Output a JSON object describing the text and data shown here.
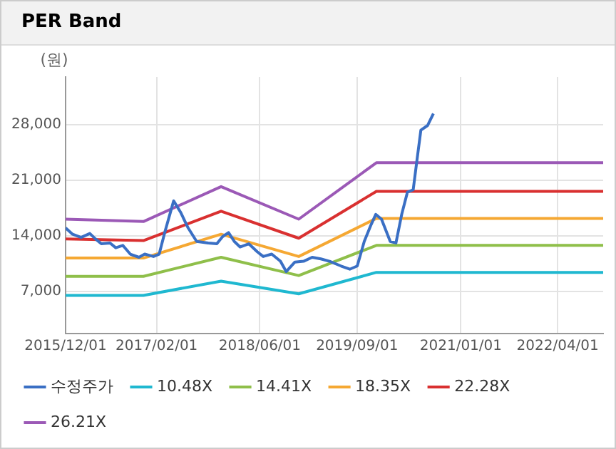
{
  "chart_data": {
    "type": "line",
    "title": "PER Band",
    "ylabel": "(원)",
    "x": [
      "2015-12-01",
      "2016-12-01",
      "2017-12-01",
      "2018-12-01",
      "2019-12-01",
      "2022-11-01"
    ],
    "series": [
      {
        "name": "수정주가",
        "color": "#3a6fc4",
        "x": [
          "2015-12-01",
          "2016-01-03",
          "2016-02-12",
          "2016-03-24",
          "2016-04-20",
          "2016-05-17",
          "2016-06-27",
          "2016-07-24",
          "2016-08-26",
          "2016-09-30",
          "2016-11-10",
          "2016-12-07",
          "2017-01-17",
          "2017-02-13",
          "2017-03-12",
          "2017-04-22",
          "2017-05-24",
          "2017-06-29",
          "2017-08-08",
          "2017-10-02",
          "2017-11-11",
          "2017-12-08",
          "2018-01-05",
          "2018-02-01",
          "2018-02-28",
          "2018-04-10",
          "2018-05-20",
          "2018-06-17",
          "2018-07-27",
          "2018-09-06",
          "2018-10-03",
          "2018-11-13",
          "2018-12-24",
          "2019-02-02",
          "2019-03-15",
          "2019-04-25",
          "2019-06-18",
          "2019-07-29",
          "2019-09-02",
          "2019-10-05",
          "2019-11-06",
          "2019-11-28",
          "2019-12-25",
          "2020-02-04",
          "2020-03-02",
          "2020-03-29",
          "2020-04-25",
          "2020-05-22",
          "2020-06-10",
          "2020-06-27",
          "2020-07-29",
          "2020-08-25"
        ],
        "values": [
          15000,
          14200,
          13800,
          14300,
          13600,
          13000,
          13100,
          12500,
          12800,
          11700,
          11300,
          11700,
          11400,
          11700,
          14500,
          18400,
          17000,
          15000,
          13300,
          13100,
          13000,
          13900,
          14400,
          13300,
          12600,
          13000,
          12000,
          11400,
          11700,
          10800,
          9500,
          10700,
          10800,
          11300,
          11100,
          10800,
          10200,
          9800,
          10200,
          13300,
          15400,
          16700,
          16100,
          13300,
          13100,
          16700,
          19500,
          19800,
          23800,
          27300,
          27900,
          29400
        ]
      },
      {
        "name": "10.48X",
        "color": "#1fb8d0",
        "values": [
          6500,
          6500,
          8300,
          6700,
          9400,
          9400
        ]
      },
      {
        "name": "14.41X",
        "color": "#8fbf4a",
        "values": [
          8900,
          8900,
          11300,
          9000,
          12800,
          12800
        ]
      },
      {
        "name": "18.35X",
        "color": "#f5a833",
        "values": [
          11200,
          11200,
          14200,
          11400,
          16200,
          16200
        ]
      },
      {
        "name": "22.28X",
        "color": "#d93030",
        "values": [
          13600,
          13400,
          17100,
          13700,
          19600,
          19600
        ]
      },
      {
        "name": "26.21X",
        "color": "#9b59b6",
        "values": [
          16100,
          15800,
          20200,
          16100,
          23200,
          23200
        ]
      }
    ],
    "xlim": [
      "2015-12-01",
      "2022-11-01"
    ],
    "xticks": [
      {
        "value": "2015-12-01",
        "label": "2015/12/01"
      },
      {
        "value": "2017-02-01",
        "label": "2017/02/01"
      },
      {
        "value": "2018-06-01",
        "label": "2018/06/01"
      },
      {
        "value": "2019-09-01",
        "label": "2019/09/01"
      },
      {
        "value": "2021-01-01",
        "label": "2021/01/01"
      },
      {
        "value": "2022-04-01",
        "label": "2022/04/01"
      }
    ],
    "ylim": [
      1700,
      34000
    ],
    "yticks": [
      {
        "value": 7000,
        "label": "7,000"
      },
      {
        "value": 14000,
        "label": "14,000"
      },
      {
        "value": 21000,
        "label": "21,000"
      },
      {
        "value": 28000,
        "label": "28,000"
      }
    ],
    "grid": true,
    "legend": "bottom",
    "marker": "none",
    "line_style": "solid"
  }
}
